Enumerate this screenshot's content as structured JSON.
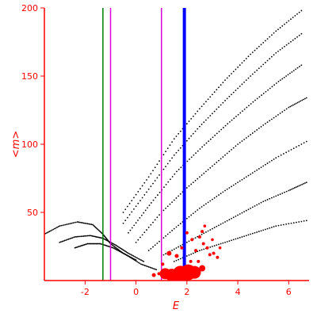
{
  "chart_data": {
    "type": "scatter",
    "title": "",
    "xlabel": "E",
    "ylabel": "<m>",
    "xlim": [
      -3.6,
      6.8
    ],
    "ylim": [
      0,
      200
    ],
    "x_ticks": [
      -2,
      0,
      2,
      4,
      6
    ],
    "y_ticks": [
      50,
      100,
      150,
      200
    ],
    "x_tick_labels": [
      "-2",
      "0",
      "2",
      "4",
      "6"
    ],
    "y_tick_labels": [
      "50",
      "100",
      "150",
      "200"
    ],
    "grid": false,
    "legend": "none",
    "colors": {
      "axes": "#ff0000",
      "points": "#000000",
      "highlight_points": "#ff0000",
      "line_green": "#008000",
      "line_magenta": "#dd00dd",
      "line_blue": "#0000ff"
    },
    "vertical_lines": [
      {
        "x": -1.3,
        "color": "#008000",
        "width": 1.5
      },
      {
        "x": -1.0,
        "color": "#dd00dd",
        "width": 1.5
      },
      {
        "x": 1.0,
        "color": "#dd00dd",
        "width": 1.5
      },
      {
        "x": 1.9,
        "color": "#0000ff",
        "width": 4
      }
    ],
    "series": [
      {
        "type": "line-dotted",
        "color": "#000000",
        "description_bands": [
          {
            "points": [
              [
                -0.5,
                50
              ],
              [
                0.5,
                76
              ],
              [
                1.5,
                104
              ],
              [
                2.5,
                126
              ],
              [
                3.5,
                147
              ],
              [
                4.5,
                166
              ],
              [
                5.5,
                183
              ],
              [
                6.5,
                198
              ]
            ]
          },
          {
            "points": [
              [
                -0.5,
                42
              ],
              [
                0.5,
                67
              ],
              [
                1.5,
                92
              ],
              [
                2.5,
                113
              ],
              [
                3.5,
                132
              ],
              [
                4.5,
                150
              ],
              [
                5.5,
                167
              ],
              [
                6.5,
                181
              ]
            ]
          },
          {
            "points": [
              [
                -0.3,
                35
              ],
              [
                0.6,
                57
              ],
              [
                1.6,
                80
              ],
              [
                2.6,
                98
              ],
              [
                3.6,
                115
              ],
              [
                4.6,
                131
              ],
              [
                5.6,
                146
              ],
              [
                6.5,
                158
              ]
            ]
          },
          {
            "points": [
              [
                0.0,
                28
              ],
              [
                1.0,
                50
              ],
              [
                2.0,
                68
              ],
              [
                3.0,
                84
              ],
              [
                4.0,
                100
              ],
              [
                5.0,
                114
              ],
              [
                6.0,
                127
              ],
              [
                6.7,
                134
              ]
            ]
          },
          {
            "points": [
              [
                0.5,
                22
              ],
              [
                1.5,
                38
              ],
              [
                2.5,
                53
              ],
              [
                3.5,
                66
              ],
              [
                4.5,
                78
              ],
              [
                5.5,
                90
              ],
              [
                6.7,
                102
              ]
            ]
          },
          {
            "points": [
              [
                1.0,
                18
              ],
              [
                2.0,
                28
              ],
              [
                3.0,
                38
              ],
              [
                4.0,
                48
              ],
              [
                5.0,
                58
              ],
              [
                6.0,
                66
              ],
              [
                6.7,
                72
              ]
            ]
          },
          {
            "points": [
              [
                1.5,
                14
              ],
              [
                2.5,
                22
              ],
              [
                3.5,
                28
              ],
              [
                4.5,
                34
              ],
              [
                5.5,
                40
              ],
              [
                6.7,
                44
              ]
            ]
          },
          {
            "points": [
              [
                -3.6,
                34
              ],
              [
                -3.0,
                40
              ],
              [
                -2.3,
                43
              ],
              [
                -1.7,
                41
              ],
              [
                -1.3,
                34
              ],
              [
                -1.0,
                27
              ],
              [
                -0.5,
                20
              ],
              [
                0.0,
                15
              ]
            ]
          },
          {
            "points": [
              [
                -3.0,
                28
              ],
              [
                -2.4,
                32
              ],
              [
                -1.8,
                33
              ],
              [
                -1.3,
                31
              ],
              [
                -0.8,
                26
              ],
              [
                -0.3,
                20
              ],
              [
                0.3,
                14
              ]
            ]
          },
          {
            "points": [
              [
                -2.4,
                24
              ],
              [
                -1.9,
                27
              ],
              [
                -1.4,
                27
              ],
              [
                -0.9,
                24
              ],
              [
                -0.4,
                19
              ],
              [
                0.2,
                12
              ],
              [
                0.8,
                8
              ]
            ]
          }
        ]
      },
      {
        "type": "scatter",
        "color": "#ff0000",
        "points": [
          {
            "x": 1.15,
            "y": 5,
            "size": 7
          },
          {
            "x": 1.4,
            "y": 4,
            "size": 8
          },
          {
            "x": 1.75,
            "y": 5,
            "size": 10
          },
          {
            "x": 2.05,
            "y": 6,
            "size": 10
          },
          {
            "x": 2.3,
            "y": 6,
            "size": 8
          },
          {
            "x": 2.6,
            "y": 9,
            "size": 4
          },
          {
            "x": 0.7,
            "y": 4,
            "size": 2.5
          },
          {
            "x": 0.9,
            "y": 5,
            "size": 2
          },
          {
            "x": 1.3,
            "y": 20,
            "size": 3
          },
          {
            "x": 1.6,
            "y": 18,
            "size": 2.5
          },
          {
            "x": 2.2,
            "y": 30,
            "size": 2
          },
          {
            "x": 2.35,
            "y": 22,
            "size": 2
          },
          {
            "x": 2.5,
            "y": 32,
            "size": 2
          },
          {
            "x": 2.65,
            "y": 27,
            "size": 2
          },
          {
            "x": 2.8,
            "y": 24,
            "size": 2
          },
          {
            "x": 2.9,
            "y": 19,
            "size": 2
          },
          {
            "x": 3.05,
            "y": 20,
            "size": 2
          },
          {
            "x": 3.2,
            "y": 17,
            "size": 2
          },
          {
            "x": 2.6,
            "y": 36,
            "size": 2
          },
          {
            "x": 2.0,
            "y": 35,
            "size": 2
          },
          {
            "x": 1.8,
            "y": 24,
            "size": 2
          },
          {
            "x": 2.7,
            "y": 40,
            "size": 1.8
          },
          {
            "x": 3.0,
            "y": 30,
            "size": 1.8
          },
          {
            "x": 2.45,
            "y": 14,
            "size": 2
          },
          {
            "x": 2.15,
            "y": 14,
            "size": 2
          },
          {
            "x": 3.3,
            "y": 24,
            "size": 1.8
          },
          {
            "x": 1.05,
            "y": 12,
            "size": 2
          }
        ]
      }
    ]
  }
}
